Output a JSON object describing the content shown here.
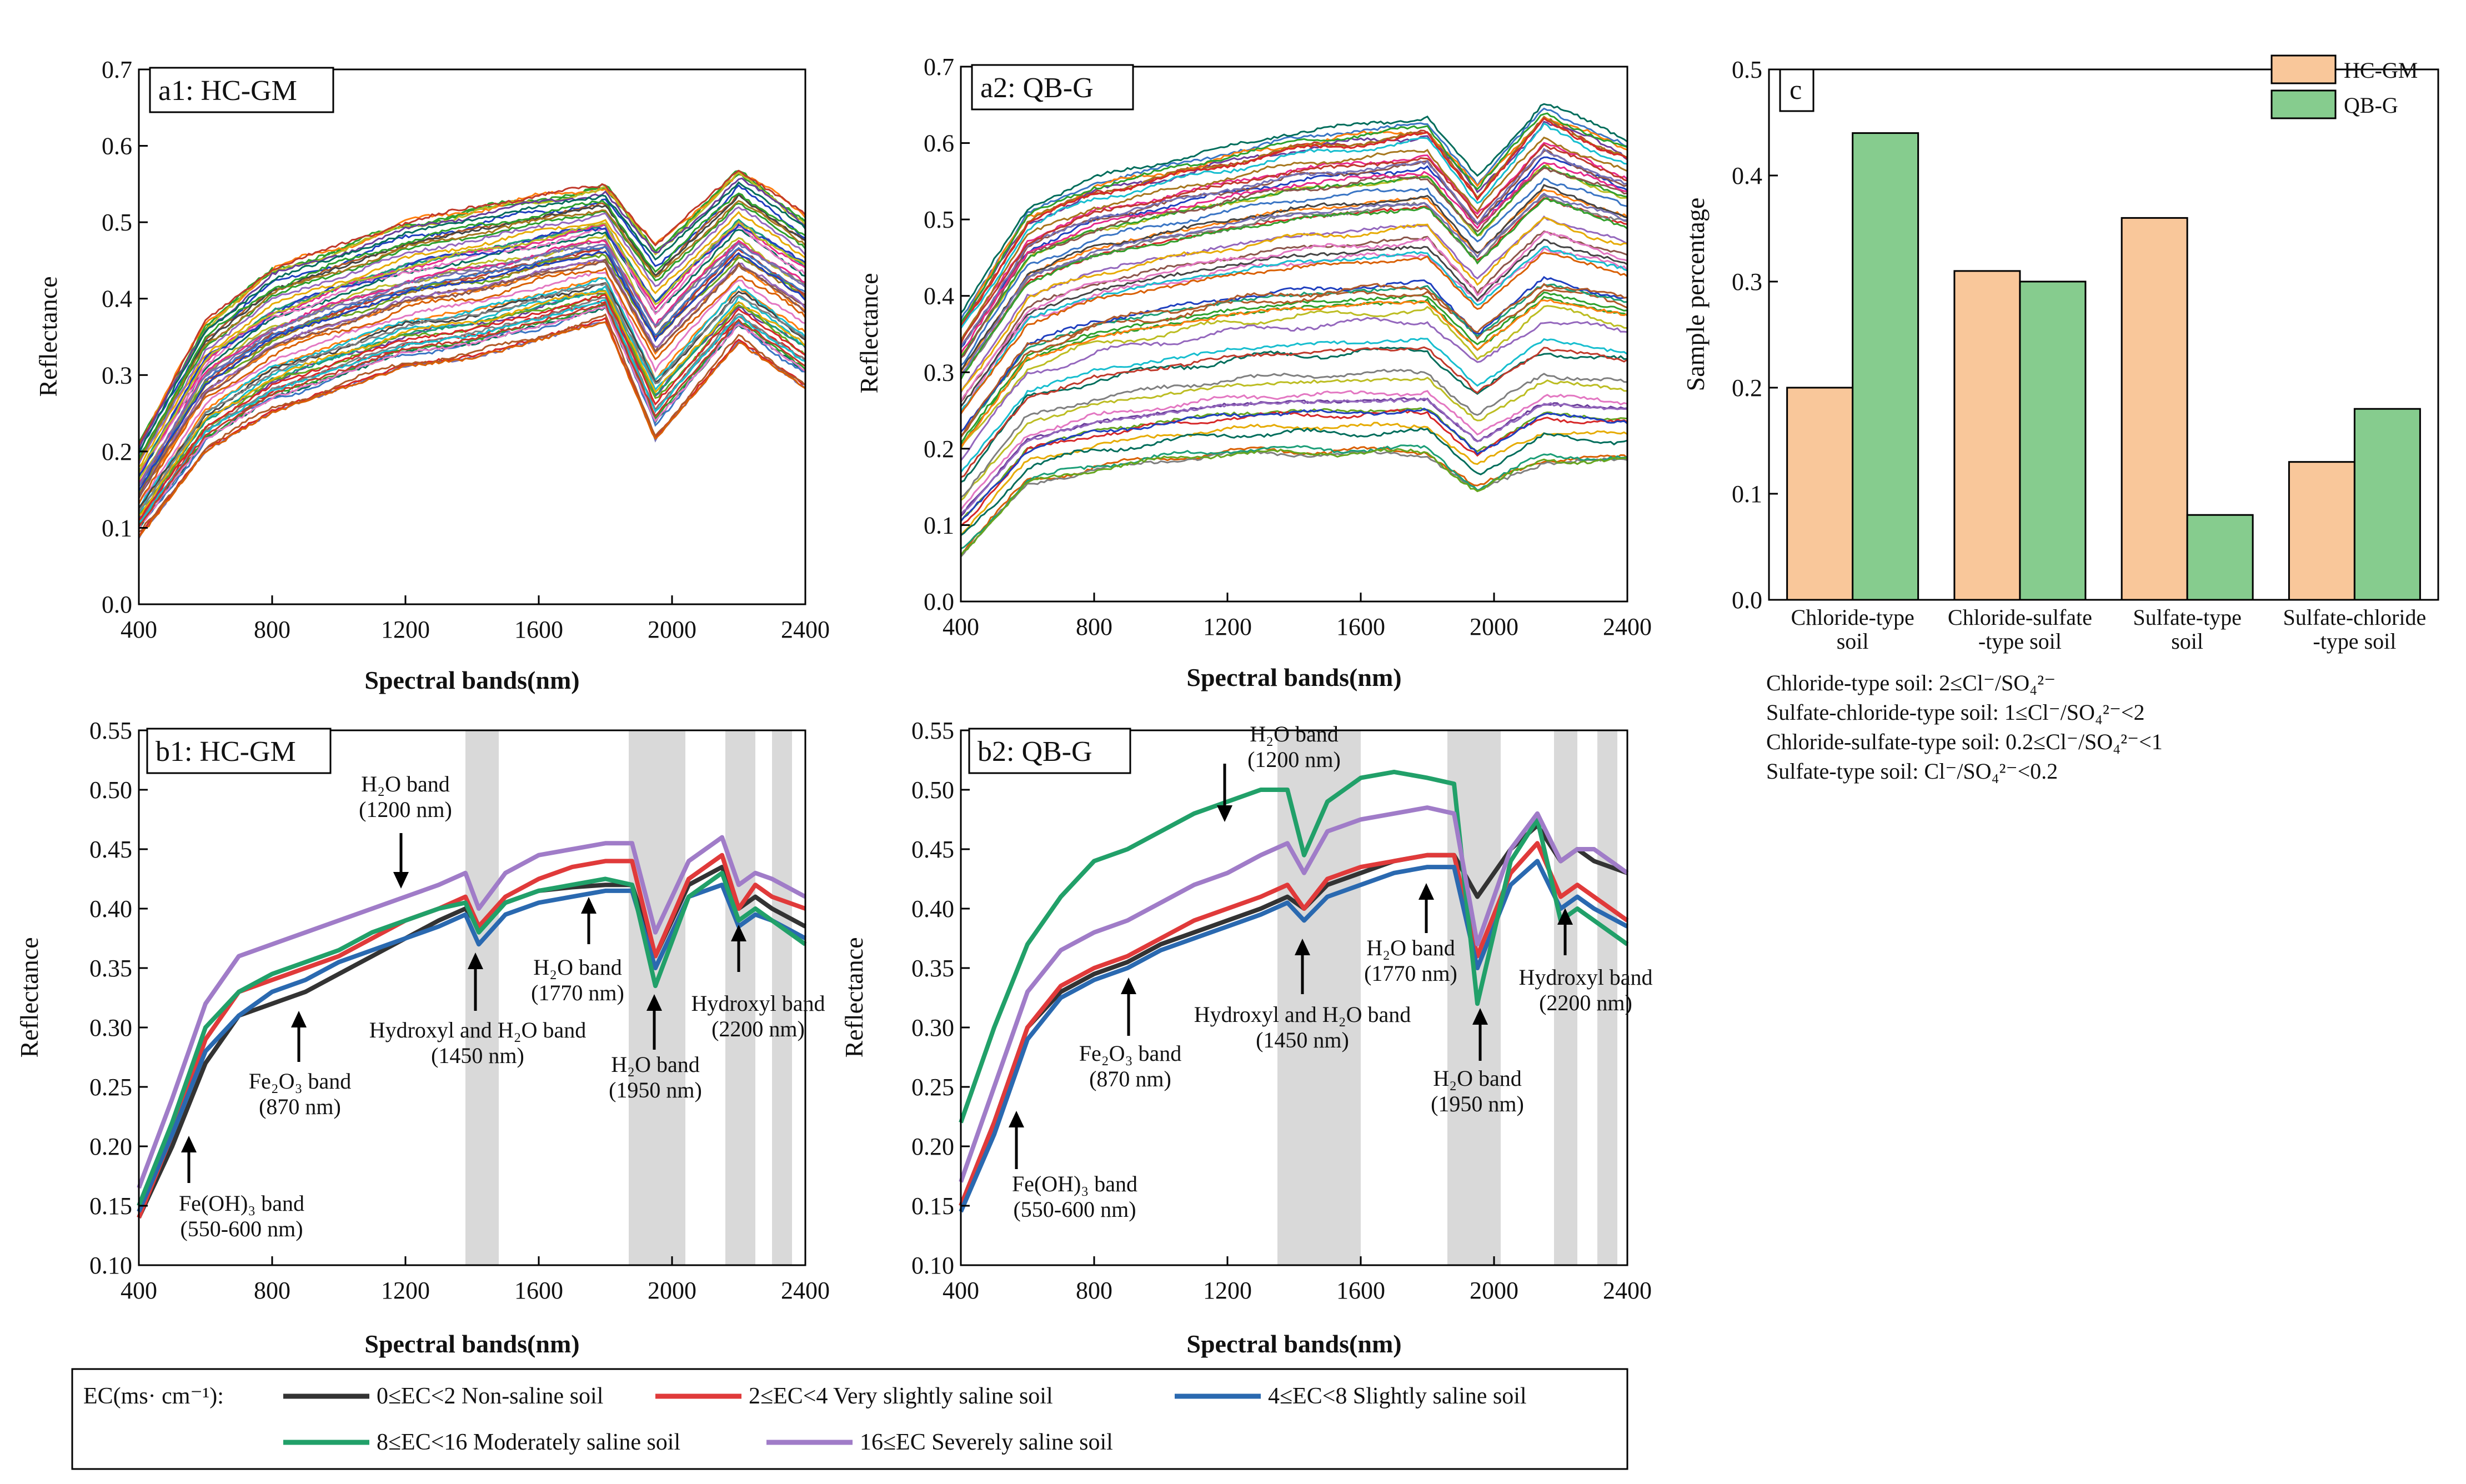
{
  "colors": {
    "hc_gm": "#f9c79a",
    "qb_g": "#86cc8e",
    "ec_non_saline": "#333333",
    "ec_very_slight": "#e03a3a",
    "ec_slight": "#2a69b0",
    "ec_moderate": "#21a069",
    "ec_severe": "#a07cc8",
    "band_shade": "#d9d9d9"
  },
  "panels": {
    "a1": {
      "label": "a1: HC-GM"
    },
    "a2": {
      "label": "a2: QB-G"
    },
    "b1": {
      "label": "b1: HC-GM"
    },
    "b2": {
      "label": "b2: QB-G"
    },
    "c": {
      "label": "c"
    }
  },
  "axes": {
    "reflectance_label": "Reflectance",
    "spectral_label": "Spectral bands(nm)",
    "sample_pct_label": "Sample percentage"
  },
  "legend_c": {
    "hc_gm": "HC-GM",
    "qb_g": "QB-G"
  },
  "ratio_notes": {
    "line1": "Chloride-type soil: 2≤Cl⁻/SO₄²⁻",
    "line2": "Sulfate-chloride-type soil: 1≤Cl⁻/SO₄²⁻<2",
    "line3": "Chloride-sulfate-type soil: 0.2≤Cl⁻/SO₄²⁻<1",
    "line4": "Sulfate-type soil: Cl⁻/SO₄²⁻<0.2"
  },
  "ec_legend": {
    "title": "EC(ms· cm⁻¹):",
    "items": [
      {
        "label": "0≤EC<2   Non-saline soil",
        "color_key": "ec_non_saline"
      },
      {
        "label": "2≤EC<4   Very slightly saline soil",
        "color_key": "ec_very_slight"
      },
      {
        "label": "4≤EC<8   Slightly saline soil",
        "color_key": "ec_slight"
      },
      {
        "label": "8≤EC<16   Moderately saline soil",
        "color_key": "ec_moderate"
      },
      {
        "label": "16≤EC   Severely  saline soil",
        "color_key": "ec_severe"
      }
    ]
  },
  "annotations_b1": {
    "fe_oh": {
      "l1": "Fe(OH)₃ band",
      "l2": "(550-600 nm)"
    },
    "fe2o3": {
      "l1": "Fe₂O₃ band",
      "l2": "(870 nm)"
    },
    "h2o_1200": {
      "l1": "H₂O band",
      "l2": "(1200 nm)"
    },
    "hyd_1450": {
      "l1": "Hydroxyl and H₂O band",
      "l2": "(1450 nm)"
    },
    "h2o_1770": {
      "l1": "H₂O band",
      "l2": "(1770 nm)"
    },
    "h2o_1950": {
      "l1": "H₂O band",
      "l2": "(1950 nm)"
    },
    "hyd_2200": {
      "l1": "Hydroxyl band",
      "l2": "(2200 nm)"
    }
  },
  "annotations_b2": {
    "fe_oh": {
      "l1": "Fe(OH)₃ band",
      "l2": "(550-600 nm)"
    },
    "fe2o3": {
      "l1": "Fe₂O₃ band",
      "l2": "(870 nm)"
    },
    "h2o_1200": {
      "l1": "H₂O band",
      "l2": "(1200 nm)"
    },
    "hyd_1450": {
      "l1": "Hydroxyl and H₂O band",
      "l2": "(1450 nm)"
    },
    "h2o_1770": {
      "l1": "H₂O band",
      "l2": "(1770 nm)"
    },
    "h2o_1950": {
      "l1": "H₂O band",
      "l2": "(1950 nm)"
    },
    "hyd_2200": {
      "l1": "Hydroxyl band",
      "l2": "(2200 nm)"
    }
  },
  "chart_data": [
    {
      "id": "a1",
      "type": "line",
      "title": "a1: HC-GM",
      "xlabel": "Spectral bands(nm)",
      "ylabel": "Reflectance",
      "xlim": [
        400,
        2400
      ],
      "ylim": [
        0.0,
        0.7
      ],
      "xticks": [
        400,
        800,
        1200,
        1600,
        2000,
        2400
      ],
      "yticks": [
        0.0,
        0.1,
        0.2,
        0.3,
        0.4,
        0.5,
        0.6,
        0.7
      ],
      "series_count": 60,
      "envelope": {
        "x": [
          400,
          600,
          800,
          1200,
          1400,
          1800,
          1950,
          2200,
          2400
        ],
        "min": [
          0.08,
          0.19,
          0.24,
          0.3,
          0.31,
          0.36,
          0.2,
          0.33,
          0.27
        ],
        "max": [
          0.21,
          0.37,
          0.44,
          0.5,
          0.52,
          0.55,
          0.47,
          0.57,
          0.51
        ]
      }
    },
    {
      "id": "a2",
      "type": "line",
      "title": "a2: QB-G",
      "xlabel": "Spectral bands(nm)",
      "ylabel": "Reflectance",
      "xlim": [
        400,
        2400
      ],
      "ylim": [
        0.0,
        0.7
      ],
      "xticks": [
        400,
        800,
        1200,
        1600,
        2000,
        2400
      ],
      "yticks": [
        0.0,
        0.1,
        0.2,
        0.3,
        0.4,
        0.5,
        0.6,
        0.7
      ],
      "series_count": 60,
      "envelope": {
        "x": [
          400,
          600,
          800,
          1200,
          1400,
          1800,
          1950,
          2150,
          2400
        ],
        "min": [
          0.06,
          0.15,
          0.17,
          0.19,
          0.19,
          0.19,
          0.14,
          0.18,
          0.18
        ],
        "max": [
          0.38,
          0.52,
          0.56,
          0.6,
          0.62,
          0.64,
          0.56,
          0.66,
          0.61
        ]
      }
    },
    {
      "id": "b1",
      "type": "line",
      "title": "b1: HC-GM",
      "xlabel": "Spectral bands(nm)",
      "ylabel": "Reflectance",
      "xlim": [
        400,
        2400
      ],
      "ylim": [
        0.1,
        0.55
      ],
      "xticks": [
        400,
        800,
        1200,
        1600,
        2000,
        2400
      ],
      "yticks": [
        0.1,
        0.15,
        0.2,
        0.25,
        0.3,
        0.35,
        0.4,
        0.45,
        0.5,
        0.55
      ],
      "shaded_bands": [
        [
          1380,
          1480
        ],
        [
          1870,
          2040
        ],
        [
          2160,
          2250
        ],
        [
          2300,
          2360
        ]
      ],
      "x": [
        400,
        500,
        600,
        700,
        800,
        900,
        1000,
        1100,
        1200,
        1300,
        1380,
        1420,
        1500,
        1600,
        1700,
        1800,
        1880,
        1950,
        2050,
        2150,
        2200,
        2250,
        2300,
        2400
      ],
      "series": [
        {
          "name": "0≤EC<2 Non-saline soil",
          "color_key": "ec_non_saline",
          "values": [
            0.14,
            0.2,
            0.27,
            0.31,
            0.32,
            0.33,
            0.345,
            0.36,
            0.375,
            0.39,
            0.4,
            0.385,
            0.405,
            0.415,
            0.418,
            0.42,
            0.42,
            0.36,
            0.42,
            0.435,
            0.4,
            0.41,
            0.4,
            0.385
          ]
        },
        {
          "name": "2≤EC<4 Very slightly saline soil",
          "color_key": "ec_very_slight",
          "values": [
            0.14,
            0.21,
            0.29,
            0.33,
            0.34,
            0.35,
            0.36,
            0.375,
            0.39,
            0.4,
            0.41,
            0.385,
            0.41,
            0.425,
            0.435,
            0.44,
            0.44,
            0.36,
            0.425,
            0.445,
            0.4,
            0.42,
            0.41,
            0.4
          ]
        },
        {
          "name": "4≤EC<8 Slightly saline soil",
          "color_key": "ec_slight",
          "values": [
            0.145,
            0.21,
            0.28,
            0.31,
            0.33,
            0.34,
            0.355,
            0.365,
            0.375,
            0.385,
            0.395,
            0.37,
            0.395,
            0.405,
            0.41,
            0.415,
            0.415,
            0.35,
            0.41,
            0.42,
            0.385,
            0.395,
            0.39,
            0.375
          ]
        },
        {
          "name": "8≤EC<16 Moderately saline soil",
          "color_key": "ec_moderate",
          "values": [
            0.15,
            0.22,
            0.3,
            0.33,
            0.345,
            0.355,
            0.365,
            0.38,
            0.39,
            0.4,
            0.405,
            0.38,
            0.405,
            0.415,
            0.42,
            0.425,
            0.42,
            0.335,
            0.41,
            0.43,
            0.39,
            0.4,
            0.39,
            0.37
          ]
        },
        {
          "name": "16≤EC Severely saline soil",
          "color_key": "ec_severe",
          "values": [
            0.165,
            0.24,
            0.32,
            0.36,
            0.37,
            0.38,
            0.39,
            0.4,
            0.41,
            0.42,
            0.43,
            0.4,
            0.43,
            0.445,
            0.45,
            0.455,
            0.455,
            0.38,
            0.44,
            0.46,
            0.42,
            0.43,
            0.425,
            0.41
          ]
        }
      ]
    },
    {
      "id": "b2",
      "type": "line",
      "title": "b2: QB-G",
      "xlabel": "Spectral bands(nm)",
      "ylabel": "Reflectance",
      "xlim": [
        400,
        2400
      ],
      "ylim": [
        0.1,
        0.55
      ],
      "xticks": [
        400,
        800,
        1200,
        1600,
        2000,
        2400
      ],
      "yticks": [
        0.1,
        0.15,
        0.2,
        0.25,
        0.3,
        0.35,
        0.4,
        0.45,
        0.5,
        0.55
      ],
      "shaded_bands": [
        [
          1350,
          1600
        ],
        [
          1860,
          2020
        ],
        [
          2180,
          2250
        ],
        [
          2310,
          2370
        ]
      ],
      "x": [
        400,
        500,
        600,
        700,
        800,
        900,
        1000,
        1100,
        1200,
        1300,
        1380,
        1430,
        1500,
        1600,
        1700,
        1800,
        1880,
        1950,
        2050,
        2130,
        2200,
        2250,
        2300,
        2400
      ],
      "series": [
        {
          "name": "0≤EC<2 Non-saline soil",
          "color_key": "ec_non_saline",
          "values": [
            0.15,
            0.22,
            0.3,
            0.33,
            0.345,
            0.355,
            0.37,
            0.38,
            0.39,
            0.4,
            0.41,
            0.4,
            0.42,
            0.43,
            0.44,
            0.445,
            0.445,
            0.41,
            0.45,
            0.47,
            0.44,
            0.45,
            0.44,
            0.43
          ]
        },
        {
          "name": "2≤EC<4 Very slightly saline soil",
          "color_key": "ec_very_slight",
          "values": [
            0.15,
            0.22,
            0.3,
            0.335,
            0.35,
            0.36,
            0.375,
            0.39,
            0.4,
            0.41,
            0.42,
            0.4,
            0.425,
            0.435,
            0.44,
            0.445,
            0.445,
            0.36,
            0.43,
            0.455,
            0.41,
            0.42,
            0.41,
            0.39
          ]
        },
        {
          "name": "4≤EC<8 Slightly saline soil",
          "color_key": "ec_slight",
          "values": [
            0.145,
            0.21,
            0.29,
            0.325,
            0.34,
            0.35,
            0.365,
            0.375,
            0.385,
            0.395,
            0.405,
            0.39,
            0.41,
            0.42,
            0.43,
            0.435,
            0.435,
            0.35,
            0.42,
            0.44,
            0.4,
            0.41,
            0.4,
            0.385
          ]
        },
        {
          "name": "8≤EC<16 Moderately saline soil",
          "color_key": "ec_moderate",
          "values": [
            0.22,
            0.3,
            0.37,
            0.41,
            0.44,
            0.45,
            0.465,
            0.48,
            0.49,
            0.5,
            0.5,
            0.445,
            0.49,
            0.51,
            0.515,
            0.51,
            0.505,
            0.32,
            0.44,
            0.475,
            0.39,
            0.4,
            0.39,
            0.37
          ]
        },
        {
          "name": "16≤EC Severely saline soil",
          "color_key": "ec_severe",
          "values": [
            0.17,
            0.25,
            0.33,
            0.365,
            0.38,
            0.39,
            0.405,
            0.42,
            0.43,
            0.445,
            0.455,
            0.43,
            0.465,
            0.475,
            0.48,
            0.485,
            0.48,
            0.37,
            0.45,
            0.48,
            0.44,
            0.45,
            0.45,
            0.43
          ]
        }
      ]
    },
    {
      "id": "c",
      "type": "bar",
      "title": "c",
      "xlabel": "",
      "ylabel": "Sample percentage",
      "ylim": [
        0.0,
        0.5
      ],
      "yticks": [
        0.0,
        0.1,
        0.2,
        0.3,
        0.4,
        0.5
      ],
      "categories": [
        {
          "l1": "Chloride-type",
          "l2": "soil"
        },
        {
          "l1": "Chloride-sulfate",
          "l2": "-type soil"
        },
        {
          "l1": "Sulfate-type",
          "l2": "soil"
        },
        {
          "l1": "Sulfate-chloride",
          "l2": "-type soil"
        }
      ],
      "series": [
        {
          "name": "HC-GM",
          "color_key": "hc_gm",
          "values": [
            0.2,
            0.31,
            0.36,
            0.13
          ]
        },
        {
          "name": "QB-G",
          "color_key": "qb_g",
          "values": [
            0.44,
            0.3,
            0.08,
            0.18
          ]
        }
      ],
      "legend_position": "top-right"
    }
  ]
}
